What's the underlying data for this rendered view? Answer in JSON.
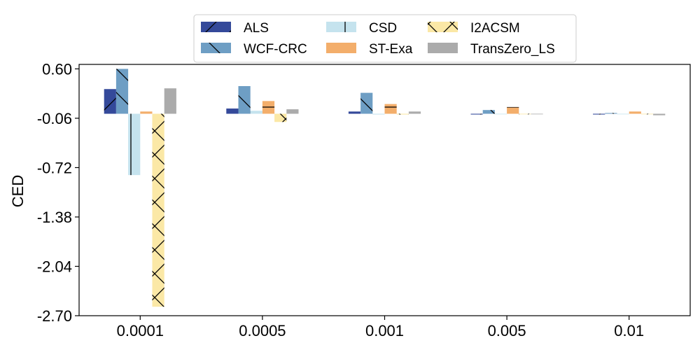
{
  "chart_data": {
    "type": "bar",
    "ylabel": "CED",
    "xlabel": "",
    "categories": [
      "0.0001",
      "0.0005",
      "0.001",
      "0.005",
      "0.01"
    ],
    "yticks": [
      "0.60",
      "-0.06",
      "-0.72",
      "-1.38",
      "-2.04",
      "-2.70"
    ],
    "ylim": [
      -2.7,
      0.66
    ],
    "grid": false,
    "legend_position": "top-center",
    "series": [
      {
        "name": "ALS",
        "color": "#34499a",
        "hatch": "/",
        "values": [
          0.33,
          0.07,
          0.03,
          -0.01,
          -0.01
        ]
      },
      {
        "name": "WCF-CRC",
        "color": "#6e9ec4",
        "hatch": "\\",
        "values": [
          0.6,
          0.37,
          0.28,
          0.05,
          0.01
        ]
      },
      {
        "name": "CSD",
        "color": "#c5e3ee",
        "hatch": "|",
        "values": [
          -0.82,
          0.04,
          -0.01,
          0.0,
          0.0
        ]
      },
      {
        "name": "ST-Exa",
        "color": "#f3ae6b",
        "hatch": "-",
        "values": [
          0.03,
          0.17,
          0.13,
          0.09,
          0.03
        ]
      },
      {
        "name": "I2ACSM",
        "color": "#fbe8a6",
        "hatch": "x",
        "values": [
          -2.58,
          -0.11,
          -0.01,
          0.0,
          0.0
        ]
      },
      {
        "name": "TransZero_LS",
        "color": "#ababab",
        "hatch": ".",
        "values": [
          0.34,
          0.06,
          0.03,
          0.0,
          -0.02
        ]
      }
    ]
  }
}
